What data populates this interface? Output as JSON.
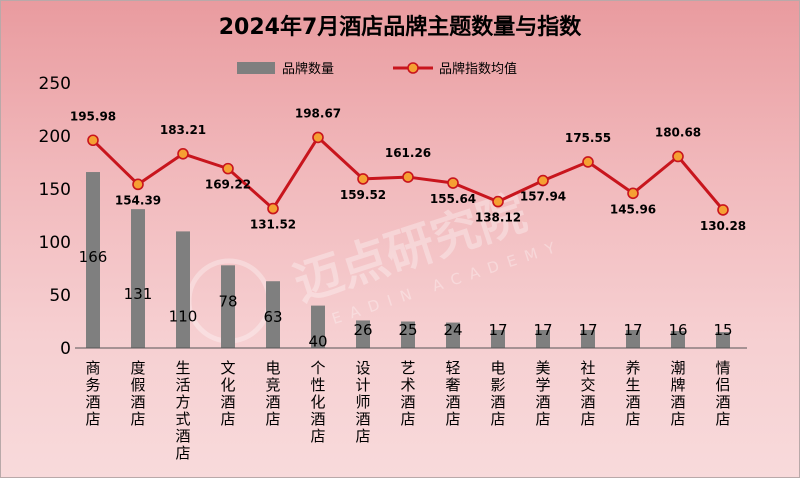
{
  "chart_data": {
    "type": "bar",
    "title": "2024年7月酒店品牌主题数量与指数",
    "categories": [
      "商务酒店",
      "度假酒店",
      "生活方式酒店",
      "文化酒店",
      "电竞酒店",
      "个性化酒店",
      "设计师酒店",
      "艺术酒店",
      "轻奢酒店",
      "电影酒店",
      "美学酒店",
      "社交酒店",
      "养生酒店",
      "潮牌酒店",
      "情侣酒店"
    ],
    "series": [
      {
        "name": "品牌数量",
        "type": "bar",
        "values": [
          166,
          131,
          110,
          78,
          63,
          40,
          26,
          25,
          24,
          17,
          17,
          17,
          17,
          16,
          15
        ],
        "color": "#7f7f7f"
      },
      {
        "name": "品牌指数均值",
        "type": "line",
        "values": [
          195.98,
          154.39,
          183.21,
          169.22,
          131.52,
          198.67,
          159.52,
          161.26,
          155.64,
          138.12,
          157.94,
          175.55,
          145.96,
          180.68,
          130.28
        ],
        "color": "#c8151d",
        "marker_color": "#f5a033"
      }
    ],
    "ylim": [
      0,
      250
    ],
    "yticks": [
      0,
      50,
      100,
      150,
      200,
      250
    ],
    "grid": false,
    "legend_position": "top",
    "watermark": {
      "cn": "迈点研究院",
      "en": "MEADIN ACADEMY"
    }
  }
}
